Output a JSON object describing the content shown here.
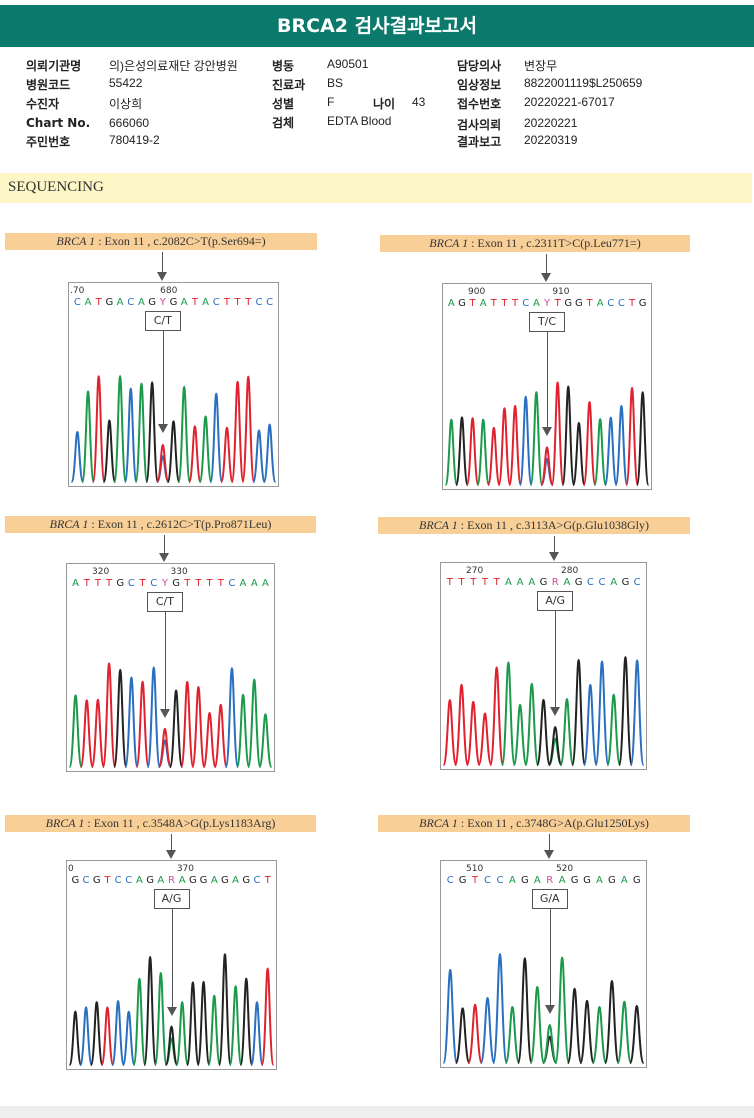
{
  "title": "BRCA2 검사결과보고서",
  "info": {
    "col1": [
      [
        "의뢰기관명",
        "의)은성의료재단 강안병원"
      ],
      [
        "병원코드",
        "55422"
      ],
      [
        "수진자",
        "이상희"
      ],
      [
        "Chart No.",
        "666060"
      ],
      [
        "주민번호",
        "780419-2"
      ]
    ],
    "col2": [
      [
        "병동",
        "A90501"
      ],
      [
        "진료과",
        "BS"
      ],
      [
        "성별",
        "F"
      ],
      [
        "검체",
        "EDTA Blood"
      ]
    ],
    "age_label": "나이",
    "age": "43",
    "col3": [
      [
        "담당의사",
        "변장무"
      ],
      [
        "임상정보",
        "8822001119$L250659"
      ],
      [
        "접수번호",
        "20220221-67017"
      ],
      [
        "검사의뢰",
        "20220221"
      ],
      [
        "결과보고",
        "20220319"
      ]
    ]
  },
  "section": "SEQUENCING",
  "colors": {
    "A": "#1a9a4a",
    "C": "#2a6fc0",
    "G": "#222222",
    "T": "#e0222e",
    "Y": "#d04aa0",
    "R": "#d04aa0"
  },
  "variants": [
    {
      "gene": "BRCA 1",
      "desc": ": Exon 11 , c.2082C>T(p.Ser694=)",
      "seq": "CATGACAGYGATACTTTCC",
      "ticks": [
        ".70",
        "680"
      ],
      "call": "C/T"
    },
    {
      "gene": "BRCA 1",
      "desc": ": Exon 11 , c.2311T>C(p.Leu771=)",
      "seq": "AGTATTTCAYTGGTACCTG",
      "ticks": [
        "900",
        "910"
      ],
      "call": "T/C"
    },
    {
      "gene": "BRCA 1",
      "desc": ": Exon 11 , c.2612C>T(p.Pro871Leu)",
      "seq": "ATTTGCTCYGTTTTCAAA",
      "ticks": [
        "320",
        "330"
      ],
      "call": "C/T"
    },
    {
      "gene": "BRCA 1",
      "desc": ": Exon 11 , c.3113A>G(p.Glu1038Gly)",
      "seq": "TTTTTAAAGRAGCCAGC",
      "ticks": [
        "270",
        "280"
      ],
      "call": "A/G"
    },
    {
      "gene": "BRCA 1",
      "desc": ": Exon 11 , c.3548A>G(p.Lys1183Arg)",
      "seq": "GCGTCCAGARAGGAGAGCT",
      "ticks": [
        "0",
        "370"
      ],
      "call": "A/G"
    },
    {
      "gene": "BRCA 1",
      "desc": ": Exon 11 , c.3748G>A(p.Glu1250Lys)",
      "seq": "CGTCCAGARAGGAGAG",
      "ticks": [
        "510",
        "520"
      ],
      "call": "G/A"
    }
  ]
}
